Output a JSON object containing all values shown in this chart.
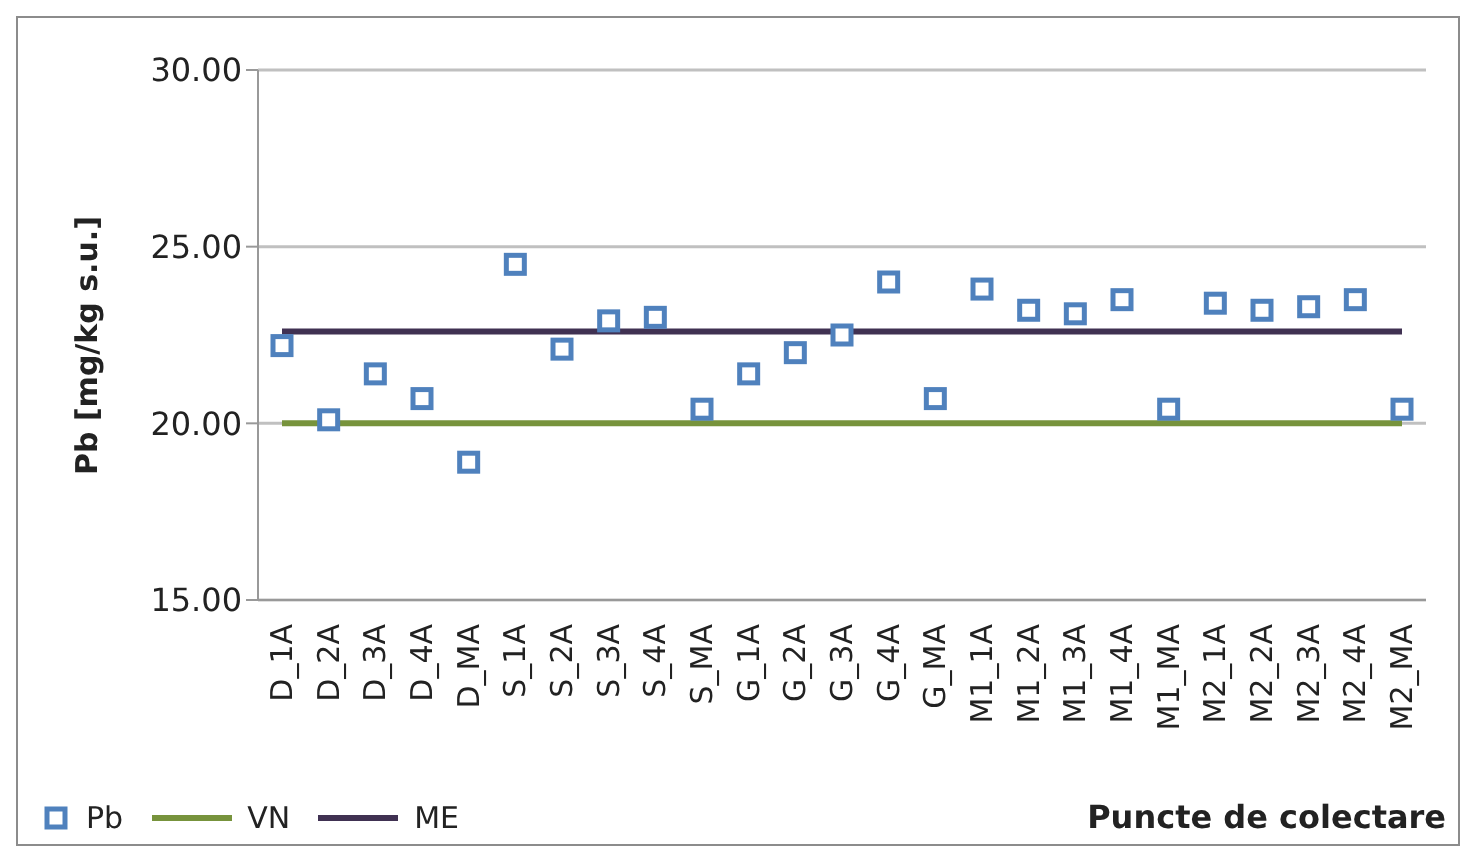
{
  "chart_data": {
    "type": "scatter",
    "ylabel": "Pb [mg/kg s.u.]",
    "xlabel": "Puncte de colectare",
    "categories": [
      "D_1A",
      "D_2A",
      "D_3A",
      "D_4A",
      "D_MA",
      "S_1A",
      "S_2A",
      "S_3A",
      "S_4A",
      "S_MA",
      "G_1A",
      "G_2A",
      "G_3A",
      "G_4A",
      "G_MA",
      "M1_1A",
      "M1_2A",
      "M1_3A",
      "M1_4A",
      "M1_MA",
      "M2_1A",
      "M2_2A",
      "M2_3A",
      "M2_4A",
      "M2_MA"
    ],
    "series": [
      {
        "name": "Pb",
        "color": "#4f81bd",
        "marker": "square",
        "values": [
          22.2,
          20.1,
          21.4,
          20.7,
          18.9,
          24.5,
          22.1,
          22.9,
          23.0,
          20.4,
          21.4,
          22.0,
          22.5,
          24.0,
          20.7,
          23.8,
          23.2,
          23.1,
          23.5,
          20.4,
          23.4,
          23.2,
          23.3,
          23.5,
          20.4
        ]
      },
      {
        "name": "VN",
        "type": "line",
        "color": "#77933c",
        "marker": "none",
        "values": [
          20,
          20,
          20,
          20,
          20,
          20,
          20,
          20,
          20,
          20,
          20,
          20,
          20,
          20,
          20,
          20,
          20,
          20,
          20,
          20,
          20,
          20,
          20,
          20,
          20
        ]
      },
      {
        "name": "ME",
        "type": "line",
        "color": "#403152",
        "marker": "none",
        "values": [
          22.6,
          22.6,
          22.6,
          22.6,
          22.6,
          22.6,
          22.6,
          22.6,
          22.6,
          22.6,
          22.6,
          22.6,
          22.6,
          22.6,
          22.6,
          22.6,
          22.6,
          22.6,
          22.6,
          22.6,
          22.6,
          22.6,
          22.6,
          22.6,
          22.6
        ]
      }
    ],
    "ylim": [
      15,
      30
    ],
    "yticks": [
      {
        "value": 15,
        "label": "15.00"
      },
      {
        "value": 20,
        "label": "20.00"
      },
      {
        "value": 25,
        "label": "25.00"
      },
      {
        "value": 30,
        "label": "30.00"
      }
    ],
    "grid": "y",
    "legend": "bottom left"
  }
}
